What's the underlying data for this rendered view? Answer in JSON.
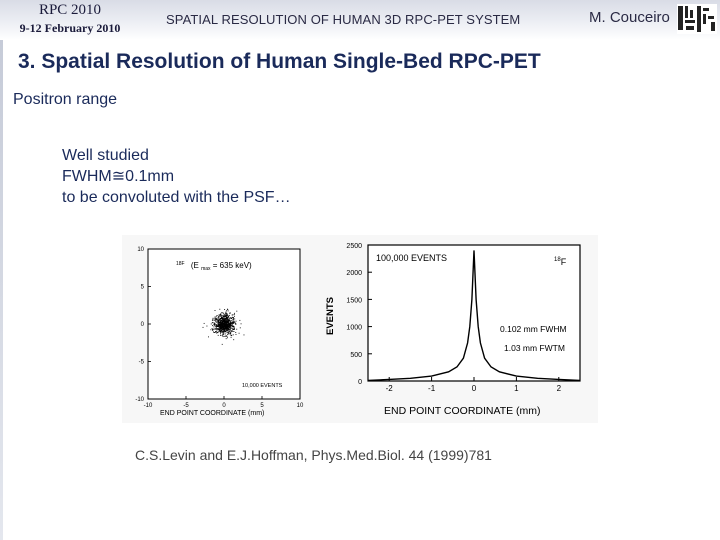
{
  "header": {
    "conference": "RPC 2010",
    "dates": "9-12 February 2010",
    "title": "SPATIAL RESOLUTION OF HUMAN 3D RPC-PET SYSTEM",
    "author": "M. Couceiro"
  },
  "slide": {
    "title": "3. Spatial Resolution of Human Single-Bed RPC-PET",
    "subtitle": "Positron range",
    "bullets": [
      "Well studied",
      "FWHM≅0.1mm",
      "to be convoluted with the PSF…"
    ],
    "citation": "C.S.Levin and E.J.Hoffman, Phys.Med.Biol. 44 (1999)781"
  },
  "colors": {
    "title": "#1a2a5a",
    "text": "#1a2a5a",
    "plot_ink": "#000000"
  },
  "chart_data": [
    {
      "type": "scatter",
      "isotope_label": "18F",
      "energy_label": "(E",
      "energy_sub": "max",
      "energy_value": " = 635 keV)",
      "events_label": "10,000 EVENTS",
      "xlabel": "END POINT COORDINATE (mm)",
      "ylabel": "",
      "xlim": [
        -10,
        10
      ],
      "ylim": [
        -10,
        10
      ],
      "xticks": [
        "-10",
        "-5",
        "0",
        "5",
        "10"
      ],
      "yticks": [
        "10",
        "5",
        "0",
        "-5",
        "-10"
      ],
      "cloud_center": [
        0,
        0
      ],
      "cloud_radius_mm": 1.2
    },
    {
      "type": "line",
      "events_label": "100,000 EVENTS",
      "isotope_label": "18F",
      "fwhm_label": "0.102 mm FWHM",
      "fwtm_label": "1.03 mm FWTM",
      "xlabel": "END POINT COORDINATE (mm)",
      "ylabel": "EVENTS",
      "xlim": [
        -2.5,
        2.5
      ],
      "ylim": [
        0,
        2500
      ],
      "xticks": [
        "-2",
        "-1",
        "0",
        "1",
        "2"
      ],
      "yticks": [
        "2500",
        "2000",
        "1500",
        "1000",
        "500",
        "0"
      ],
      "x": [
        -2.5,
        -2.0,
        -1.5,
        -1.0,
        -0.6,
        -0.4,
        -0.25,
        -0.15,
        -0.1,
        -0.05,
        0,
        0.05,
        0.1,
        0.15,
        0.25,
        0.4,
        0.6,
        1.0,
        1.5,
        2.0,
        2.5
      ],
      "y": [
        10,
        30,
        50,
        90,
        170,
        260,
        420,
        700,
        1000,
        1500,
        2400,
        1500,
        1000,
        700,
        420,
        260,
        170,
        90,
        50,
        30,
        10
      ]
    }
  ]
}
